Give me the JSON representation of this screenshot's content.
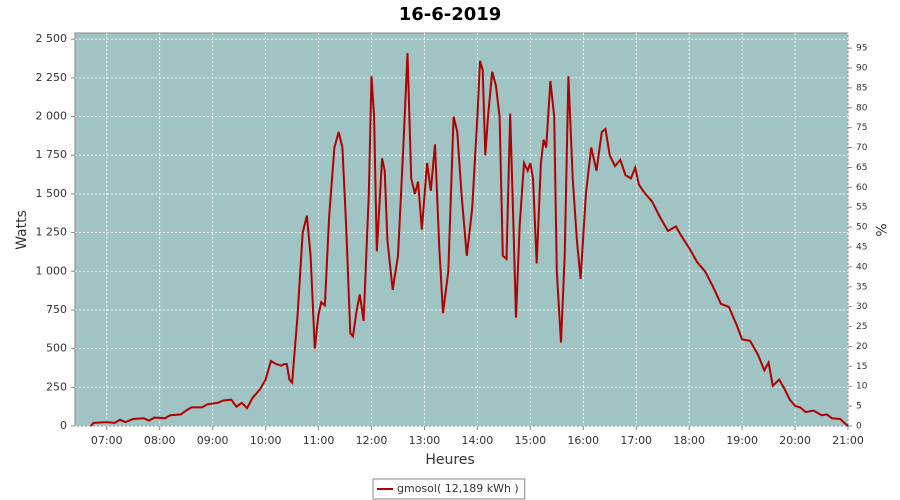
{
  "chart_data": {
    "type": "line",
    "title": "16-6-2019",
    "x_label": "Heures",
    "y_label": "Watts",
    "y2_label": "%",
    "x": [
      6.7,
      6.75,
      7.0,
      7.15,
      7.25,
      7.35,
      7.5,
      7.7,
      7.8,
      7.9,
      8.1,
      8.2,
      8.4,
      8.5,
      8.6,
      8.8,
      8.9,
      9.1,
      9.2,
      9.35,
      9.45,
      9.55,
      9.65,
      9.75,
      9.9,
      10.0,
      10.1,
      10.2,
      10.3,
      10.35,
      10.4,
      10.45,
      10.5,
      10.6,
      10.7,
      10.78,
      10.85,
      10.93,
      11.0,
      11.05,
      11.12,
      11.2,
      11.3,
      11.38,
      11.45,
      11.52,
      11.6,
      11.65,
      11.72,
      11.78,
      11.85,
      11.95,
      12.0,
      12.05,
      12.1,
      12.2,
      12.25,
      12.3,
      12.4,
      12.5,
      12.6,
      12.68,
      12.75,
      12.82,
      12.88,
      12.95,
      13.05,
      13.12,
      13.2,
      13.28,
      13.35,
      13.45,
      13.55,
      13.62,
      13.7,
      13.8,
      13.9,
      14.0,
      14.05,
      14.1,
      14.15,
      14.2,
      14.28,
      14.35,
      14.42,
      14.48,
      14.55,
      14.62,
      14.68,
      14.73,
      14.8,
      14.88,
      14.95,
      15.0,
      15.05,
      15.12,
      15.2,
      15.25,
      15.3,
      15.38,
      15.45,
      15.5,
      15.58,
      15.65,
      15.72,
      15.8,
      15.88,
      15.95,
      16.05,
      16.15,
      16.25,
      16.35,
      16.42,
      16.5,
      16.6,
      16.7,
      16.8,
      16.9,
      16.98,
      17.05,
      17.15,
      17.3,
      17.45,
      17.6,
      17.75,
      17.85,
      18.0,
      18.15,
      18.3,
      18.45,
      18.6,
      18.75,
      18.9,
      19.0,
      19.15,
      19.3,
      19.42,
      19.5,
      19.58,
      19.7,
      19.8,
      19.9,
      20.0,
      20.1,
      20.2,
      20.35,
      20.5,
      20.6,
      20.7,
      20.85,
      20.95,
      21.0
    ],
    "series": [
      {
        "name": "gmosol( 12,189 kWh )",
        "color": "#b00000",
        "values": [
          0,
          20,
          25,
          20,
          40,
          25,
          45,
          50,
          35,
          55,
          50,
          70,
          75,
          100,
          120,
          120,
          140,
          150,
          165,
          170,
          125,
          150,
          115,
          180,
          240,
          300,
          420,
          400,
          390,
          400,
          400,
          300,
          280,
          700,
          1250,
          1360,
          1100,
          500,
          720,
          800,
          780,
          1350,
          1800,
          1900,
          1800,
          1300,
          600,
          580,
          750,
          850,
          680,
          1500,
          2260,
          2000,
          1130,
          1730,
          1650,
          1200,
          880,
          1100,
          1800,
          2410,
          1600,
          1500,
          1580,
          1270,
          1700,
          1520,
          1820,
          1150,
          730,
          1000,
          2000,
          1900,
          1500,
          1100,
          1400,
          2000,
          2360,
          2300,
          1750,
          2000,
          2290,
          2200,
          2000,
          1100,
          1080,
          2020,
          1300,
          700,
          1300,
          1700,
          1650,
          1700,
          1600,
          1050,
          1700,
          1850,
          1800,
          2230,
          2000,
          1000,
          540,
          1100,
          2260,
          1600,
          1200,
          950,
          1500,
          1800,
          1650,
          1900,
          1920,
          1750,
          1680,
          1720,
          1620,
          1600,
          1670,
          1560,
          1510,
          1450,
          1350,
          1260,
          1290,
          1230,
          1150,
          1060,
          1000,
          900,
          790,
          770,
          650,
          560,
          550,
          460,
          360,
          410,
          260,
          300,
          240,
          170,
          130,
          120,
          90,
          100,
          70,
          75,
          50,
          45,
          15,
          0
        ]
      }
    ],
    "xlim": [
      6.4,
      21.0
    ],
    "xticks": [
      {
        "value": 7,
        "label": "07:00"
      },
      {
        "value": 8,
        "label": "08:00"
      },
      {
        "value": 9,
        "label": "09:00"
      },
      {
        "value": 10,
        "label": "10:00"
      },
      {
        "value": 11,
        "label": "11:00"
      },
      {
        "value": 12,
        "label": "12:00"
      },
      {
        "value": 13,
        "label": "13:00"
      },
      {
        "value": 14,
        "label": "14:00"
      },
      {
        "value": 15,
        "label": "15:00"
      },
      {
        "value": 16,
        "label": "16:00"
      },
      {
        "value": 17,
        "label": "17:00"
      },
      {
        "value": 18,
        "label": "18:00"
      },
      {
        "value": 19,
        "label": "19:00"
      },
      {
        "value": 20,
        "label": "20:00"
      },
      {
        "value": 21,
        "label": "21:00"
      }
    ],
    "ylim": [
      0,
      2540
    ],
    "yticks": [
      0,
      250,
      500,
      750,
      {
        "value": 1000,
        "label": "1 000"
      },
      {
        "value": 1250,
        "label": "1 250"
      },
      {
        "value": 1500,
        "label": "1 500"
      },
      {
        "value": 1750,
        "label": "1 750"
      },
      {
        "value": 2000,
        "label": "2 000"
      },
      {
        "value": 2250,
        "label": "2 250"
      },
      {
        "value": 2500,
        "label": "2 500"
      }
    ],
    "y2lim": [
      0,
      98.8
    ],
    "y2ticks": [
      0,
      5,
      10,
      15,
      20,
      25,
      30,
      35,
      40,
      45,
      50,
      55,
      60,
      65,
      70,
      75,
      80,
      85,
      90,
      95
    ],
    "grid": true,
    "plot_background": "#a0c4c4",
    "legend": "bottom"
  }
}
